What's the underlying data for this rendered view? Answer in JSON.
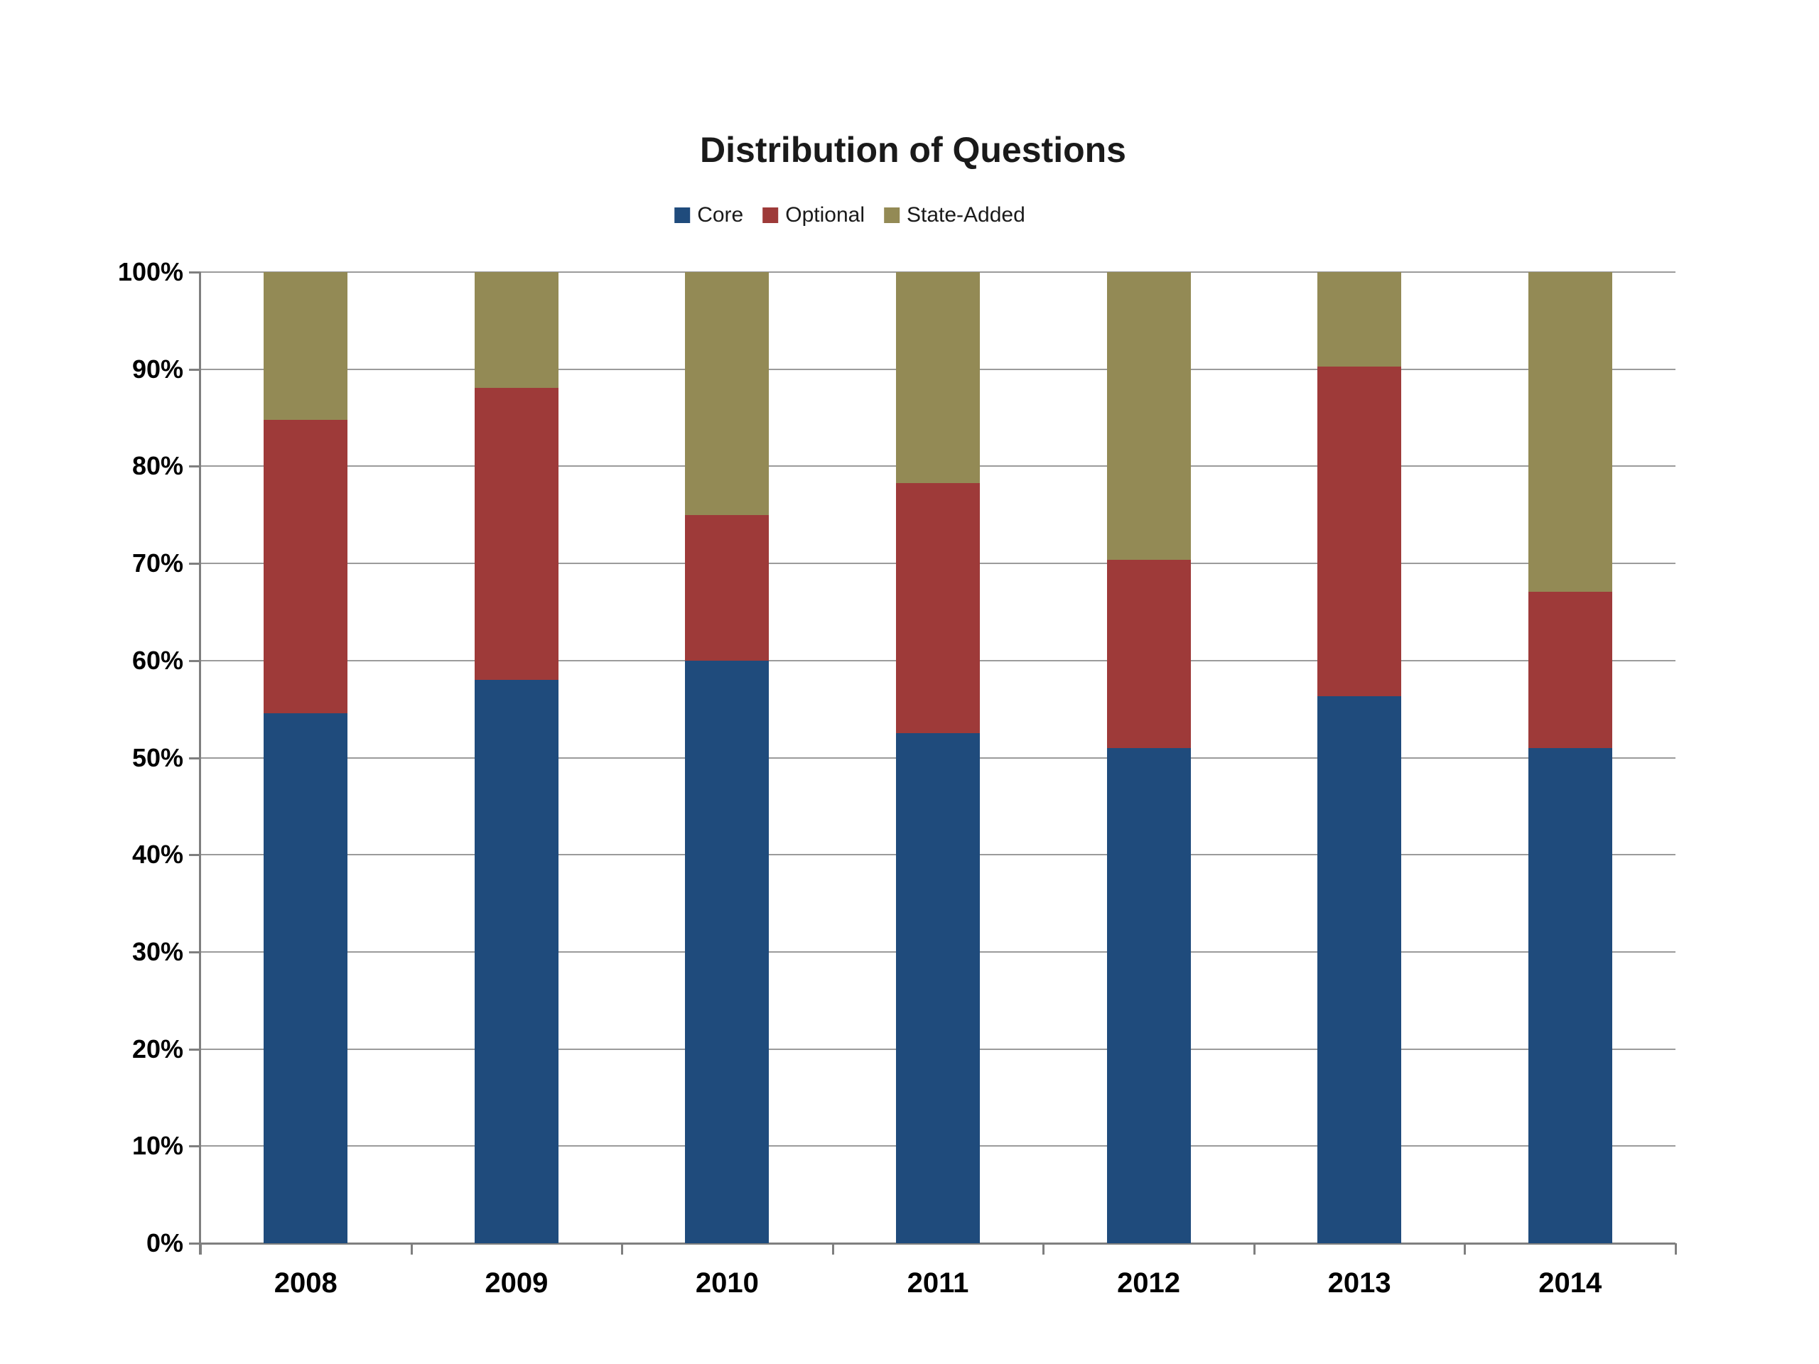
{
  "title": "Distribution of Questions",
  "legend": {
    "items": [
      {
        "label": "Core",
        "color": "#1F4B7C"
      },
      {
        "label": "Optional",
        "color": "#9E3A39"
      },
      {
        "label": "State-Added",
        "color": "#938A55"
      }
    ]
  },
  "colors": {
    "core_blue": "#1F4B7C",
    "optional_red": "#9E3A39",
    "state_added_olive": "#938A55",
    "gridline": "#9B9B9B",
    "axis": "#7F7F7F",
    "text": "#1A1A1A",
    "background": "#FFFFFF"
  },
  "chart_data": {
    "type": "bar",
    "stacked": true,
    "title": "Distribution of Questions",
    "categories": [
      "2008",
      "2009",
      "2010",
      "2011",
      "2012",
      "2013",
      "2014"
    ],
    "series": [
      {
        "name": "Core",
        "color": "#1F4B7C",
        "values": [
          54.6,
          58.0,
          60.0,
          52.5,
          51.0,
          56.3,
          51.0
        ]
      },
      {
        "name": "Optional",
        "color": "#9E3A39",
        "values": [
          30.2,
          30.1,
          15.0,
          25.8,
          19.4,
          34.0,
          16.1
        ]
      },
      {
        "name": "State-Added",
        "color": "#938A55",
        "values": [
          15.2,
          11.9,
          25.0,
          21.7,
          29.6,
          9.7,
          32.9
        ]
      }
    ],
    "xlabel": "",
    "ylabel": "",
    "ylim": [
      0,
      100
    ],
    "y_tick_step": 10,
    "y_ticks": [
      "0%",
      "10%",
      "20%",
      "30%",
      "40%",
      "50%",
      "60%",
      "70%",
      "80%",
      "90%",
      "100%"
    ],
    "grid": true,
    "legend_position": "top-center"
  }
}
